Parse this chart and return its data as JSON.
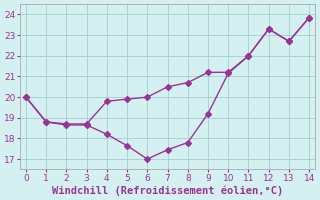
{
  "line1_x": [
    0,
    1,
    2,
    3,
    4,
    5,
    6,
    7,
    8,
    9,
    10,
    11,
    12,
    13,
    14
  ],
  "line1_y": [
    20.0,
    18.8,
    18.7,
    18.7,
    19.8,
    19.9,
    20.0,
    20.5,
    20.7,
    21.2,
    21.2,
    22.0,
    23.3,
    22.7,
    23.85
  ],
  "line2_x": [
    0,
    1,
    2,
    3,
    4,
    5,
    6,
    7,
    8,
    9,
    10,
    11,
    12,
    13,
    14
  ],
  "line2_y": [
    20.0,
    18.8,
    18.65,
    18.65,
    18.2,
    17.65,
    17.0,
    17.45,
    17.8,
    19.2,
    21.15,
    22.0,
    23.3,
    22.7,
    23.85
  ],
  "line_color": "#993399",
  "marker": "D",
  "markersize": 3.0,
  "linewidth": 1.0,
  "xlabel": "Windchill (Refroidissement éolien,°C)",
  "xlabel_fontsize": 7.5,
  "xlabel_color": "#993399",
  "ylabel_ticks": [
    17,
    18,
    19,
    20,
    21,
    22,
    23,
    24
  ],
  "xticks": [
    0,
    1,
    2,
    3,
    4,
    5,
    6,
    7,
    8,
    9,
    10,
    11,
    12,
    13,
    14
  ],
  "ylim": [
    16.5,
    24.5
  ],
  "xlim": [
    -0.3,
    14.3
  ],
  "background_color": "#d5f0f0",
  "grid_color": "#aad4d4",
  "tick_color": "#993399",
  "tick_fontsize": 6.5,
  "spine_color": "#aaaaaa"
}
